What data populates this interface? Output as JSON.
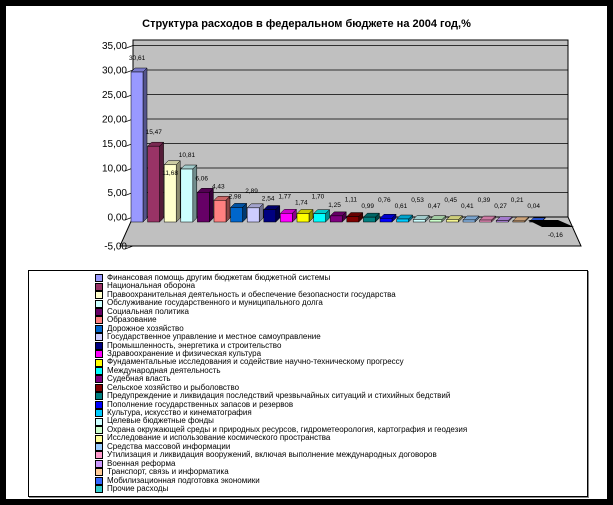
{
  "chart_data": {
    "type": "bar",
    "title": "Структура расходов в федеральном бюджете на 2004 год,%",
    "xlabel": "",
    "ylabel": "",
    "ylim": [
      -5,
      35
    ],
    "ytick_step": 5,
    "yticks": [
      "35,00",
      "30,00",
      "25,00",
      "20,00",
      "15,00",
      "10,00",
      "5,00",
      "0,00",
      "-5,00"
    ],
    "ytick_values": [
      35,
      30,
      25,
      20,
      15,
      10,
      5,
      0,
      -5
    ],
    "grid": true,
    "legend_position": "bottom",
    "wall_color": "#C0C0C0",
    "categories": [
      "Финансовая помощь другим бюджетам бюджетной системы",
      "Национальная оборона",
      "Правоохранительная деятельность и обеспечение безопасности государства",
      "Обслуживание государственного и муниципального долга",
      "Социальная политика",
      "Образование",
      "Дорожное хозяйство",
      "Государственное управление и местное самоуправление",
      "Промышленность, энергетика и строительство",
      "Здравоохранение и физическая культура",
      "Фундаментальные исследования и содействие научно-техническому прогрессу",
      "Международная деятельность",
      "Судебная власть",
      "Сельское хозяйство и рыболовство",
      "Предупреждение и ликвидация последствий чрезвычайных ситуаций и стихийных бедствий",
      "Пополнение государственных запасов и резервов",
      "Культура, искусство и кинематография",
      "Целевые бюджетные фонды",
      "Охрана окружающей среды и природных ресурсов, гидрометеорология, картография и геодезия",
      "Исследование и использование космического пространства",
      "Средства массовой информации",
      "Утилизация и ликвидация вооружений, включая выполнение международных договоров",
      "Военная реформа",
      "Транспорт, связь и информатика",
      "Мобилизационная подготовка экономики",
      "Прочие расходы"
    ],
    "values": [
      30.61,
      15.47,
      11.68,
      10.81,
      6.06,
      4.43,
      2.98,
      2.89,
      2.54,
      1.77,
      1.74,
      1.7,
      1.25,
      1.11,
      0.99,
      0.76,
      0.61,
      0.53,
      0.47,
      0.45,
      0.41,
      0.39,
      0.27,
      0.21,
      0.04,
      -0.16
    ],
    "value_labels": [
      "30,61",
      "15,47",
      "11,68",
      "10,81",
      "6,06",
      "4,43",
      "2,98",
      "2,89",
      "2,54",
      "1,77",
      "1,74",
      "1,70",
      "1,25",
      "1,11",
      "0,99",
      "0,76",
      "0,61",
      "0,53",
      "0,47",
      "0,45",
      "0,41",
      "0,39",
      "0,27",
      "0,21",
      "0,04",
      "-0,16"
    ],
    "colors": [
      "#9999FF",
      "#993366",
      "#FFFFCC",
      "#CCFFFF",
      "#660066",
      "#FF8080",
      "#0066CC",
      "#CCCCFF",
      "#000080",
      "#FF00FF",
      "#FFFF00",
      "#00FFFF",
      "#800080",
      "#800000",
      "#008080",
      "#0000FF",
      "#00CCFF",
      "#CCFFFF",
      "#CCFFCC",
      "#FFFF99",
      "#99CCFF",
      "#FF99CC",
      "#CC99FF",
      "#FFCC99",
      "#3366FF",
      "#33CCCC"
    ]
  }
}
